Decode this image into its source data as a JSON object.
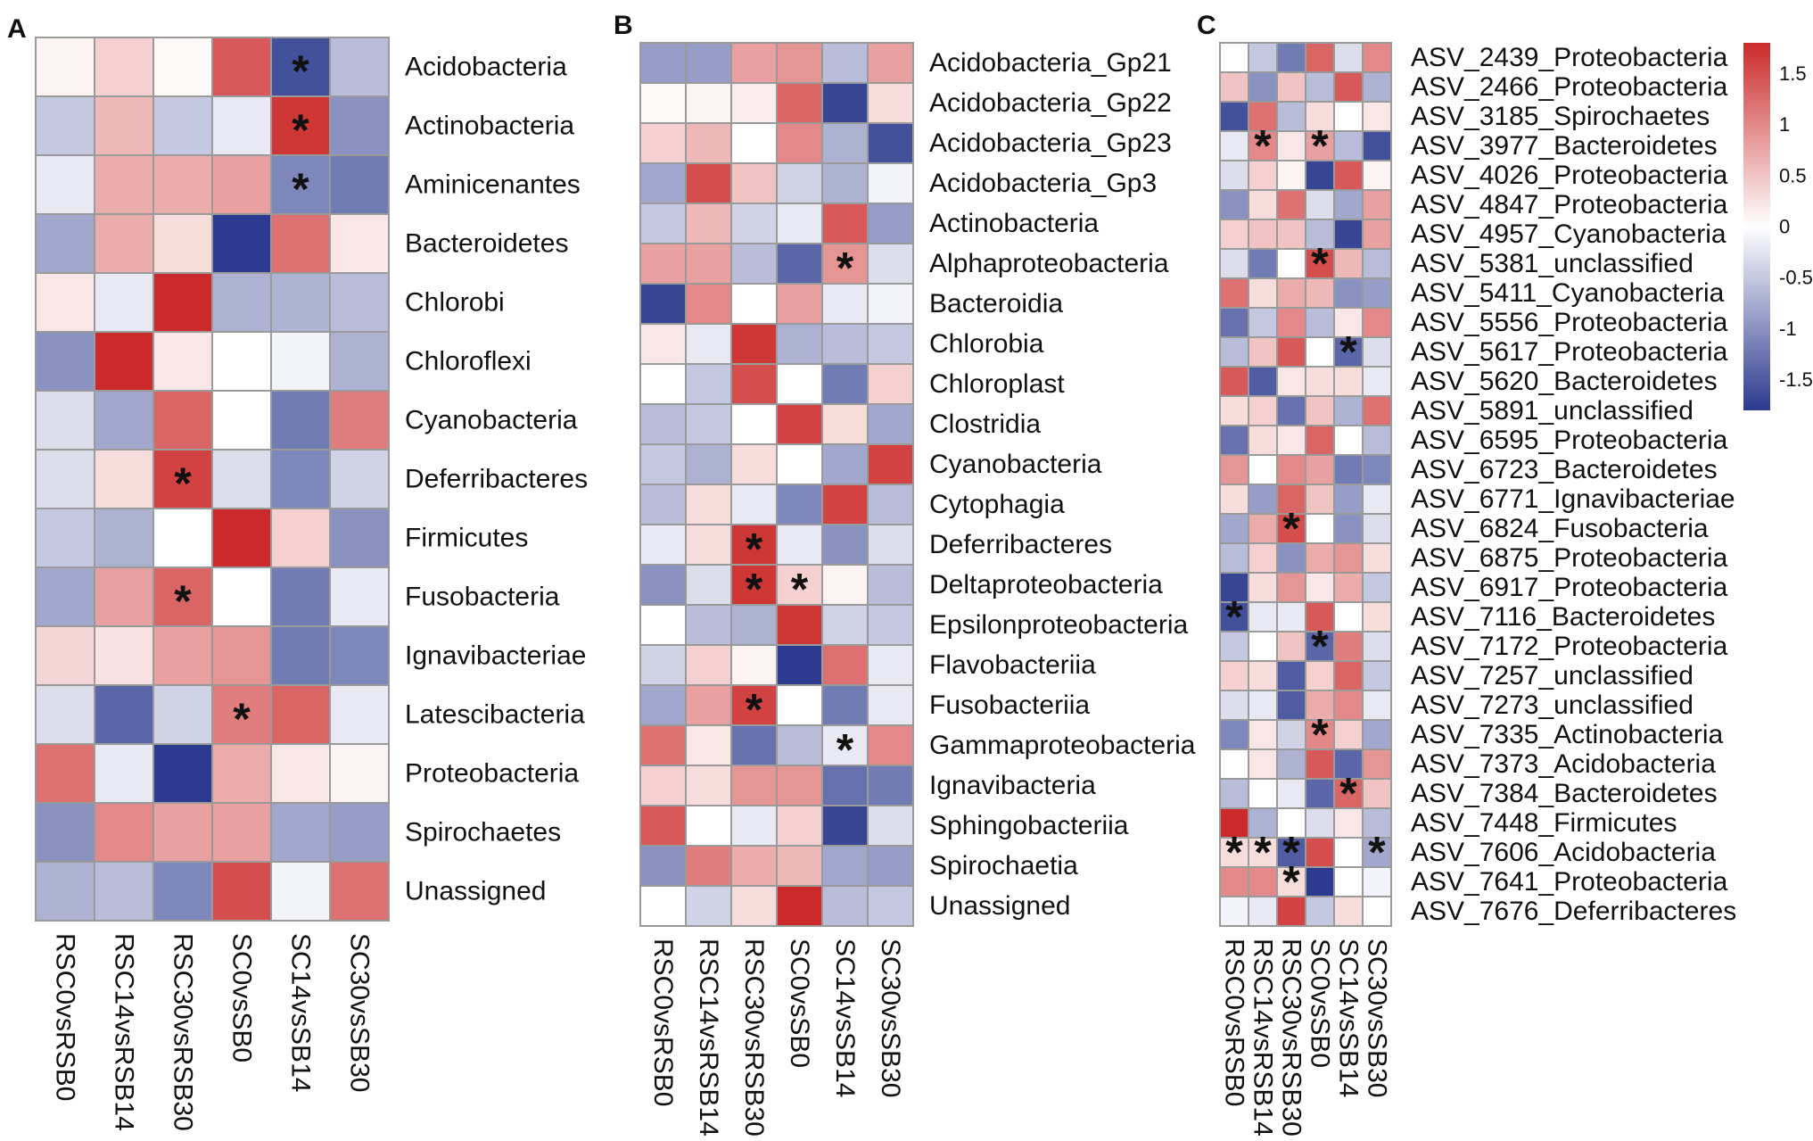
{
  "chart_data": [
    {
      "type": "heatmap",
      "panel_label": "A",
      "rows": [
        "Acidobacteria",
        "Actinobacteria",
        "Aminicenantes",
        "Bacteroidetes",
        "Chlorobi",
        "Chloroflexi",
        "Cyanobacteria",
        "Deferribacteres",
        "Firmicutes",
        "Fusobacteria",
        "Ignavibacteriae",
        "Latescibacteria",
        "Proteobacteria",
        "Spirochaetes",
        "Unassigned"
      ],
      "columns": [
        "RSC0vsRSB0",
        "RSC14vsRSB14",
        "RSC30vsRSB30",
        "SC0vsSB0",
        "SC14vsSB14",
        "SC30vsSB30"
      ],
      "values": [
        [
          0.1,
          0.4,
          0.05,
          1.4,
          -1.6,
          -0.6
        ],
        [
          -0.5,
          0.6,
          -0.5,
          -0.2,
          1.7,
          -1.0
        ],
        [
          -0.2,
          0.7,
          0.7,
          0.8,
          -1.1,
          -1.2
        ],
        [
          -0.8,
          0.7,
          0.3,
          -1.8,
          1.2,
          0.2
        ],
        [
          0.2,
          -0.2,
          1.8,
          -0.7,
          -0.7,
          -0.6
        ],
        [
          -1.0,
          1.8,
          0.2,
          0.0,
          -0.1,
          -0.7
        ],
        [
          -0.3,
          -0.8,
          1.3,
          0.0,
          -1.2,
          1.1
        ],
        [
          -0.3,
          0.3,
          1.6,
          -0.3,
          -1.1,
          -0.4
        ],
        [
          -0.5,
          -0.7,
          0.0,
          1.8,
          0.4,
          -1.0
        ],
        [
          -0.8,
          0.8,
          1.3,
          0.0,
          -1.2,
          -0.2
        ],
        [
          0.35,
          0.25,
          0.8,
          0.9,
          -1.2,
          -1.1
        ],
        [
          -0.3,
          -1.4,
          -0.4,
          1.1,
          1.3,
          -0.2
        ],
        [
          1.2,
          -0.2,
          -1.8,
          0.7,
          0.2,
          0.1
        ],
        [
          -1.0,
          1.0,
          0.8,
          0.8,
          -0.8,
          -0.9
        ],
        [
          -0.7,
          -0.6,
          -1.1,
          1.5,
          -0.1,
          1.2
        ]
      ],
      "significant": [
        [
          0,
          4
        ],
        [
          1,
          4
        ],
        [
          2,
          4
        ],
        [
          7,
          2
        ],
        [
          9,
          2
        ],
        [
          11,
          3
        ]
      ],
      "significance_marker": "*"
    },
    {
      "type": "heatmap",
      "panel_label": "B",
      "rows": [
        "Acidobacteria_Gp21",
        "Acidobacteria_Gp22",
        "Acidobacteria_Gp23",
        "Acidobacteria_Gp3",
        "Actinobacteria",
        "Alphaproteobacteria",
        "Bacteroidia",
        "Chlorobia",
        "Chloroplast",
        "Clostridia",
        "Cyanobacteria",
        "Cytophagia",
        "Deferribacteres",
        "Deltaproteobacteria",
        "Epsilonproteobacteria",
        "Flavobacteriia",
        "Fusobacteriia",
        "Gammaproteobacteria",
        "Ignavibacteria",
        "Sphingobacteriia",
        "Spirochaetia",
        "Unassigned"
      ],
      "columns": [
        "RSC0vsRSB0",
        "RSC14vsRSB14",
        "RSC30vsRSB30",
        "SC0vsSB0",
        "SC14vsSB14",
        "SC30vsSB30"
      ],
      "values": [
        [
          -0.9,
          -0.9,
          0.8,
          0.9,
          -0.6,
          0.8
        ],
        [
          0.05,
          0.1,
          0.15,
          1.3,
          -1.7,
          0.3
        ],
        [
          0.4,
          0.6,
          0.0,
          1.0,
          -0.7,
          -1.6
        ],
        [
          -0.8,
          1.5,
          0.5,
          -0.4,
          -0.7,
          -0.1
        ],
        [
          -0.5,
          0.6,
          -0.4,
          -0.2,
          1.4,
          -0.9
        ],
        [
          0.8,
          0.8,
          -0.6,
          -1.4,
          0.9,
          -0.3
        ],
        [
          -1.7,
          1.0,
          0.0,
          0.8,
          -0.2,
          -0.1
        ],
        [
          0.2,
          -0.2,
          1.7,
          -0.7,
          -0.6,
          -0.5
        ],
        [
          0.0,
          -0.5,
          1.5,
          0.0,
          -1.2,
          0.4
        ],
        [
          -0.6,
          -0.5,
          0.0,
          1.6,
          0.3,
          -0.8
        ],
        [
          -0.5,
          -0.7,
          0.3,
          0.0,
          -0.8,
          1.6
        ],
        [
          -0.6,
          0.3,
          -0.2,
          -1.1,
          1.6,
          -0.6
        ],
        [
          -0.2,
          0.3,
          1.7,
          -0.2,
          -1.0,
          -0.3
        ],
        [
          -1.0,
          -0.3,
          1.7,
          0.4,
          0.1,
          -0.6
        ],
        [
          0.0,
          -0.6,
          -0.7,
          1.7,
          -0.4,
          -0.5
        ],
        [
          -0.4,
          0.4,
          0.1,
          -1.8,
          1.2,
          -0.2
        ],
        [
          -0.8,
          0.8,
          1.6,
          0.0,
          -1.2,
          -0.2
        ],
        [
          1.2,
          0.2,
          -1.3,
          -0.6,
          -0.2,
          1.0
        ],
        [
          0.4,
          0.3,
          0.9,
          0.9,
          -1.3,
          -1.2
        ],
        [
          1.4,
          0.0,
          -0.2,
          0.4,
          -1.7,
          -0.3
        ],
        [
          -1.0,
          1.1,
          0.7,
          0.6,
          -0.8,
          -0.9
        ],
        [
          0.0,
          -0.4,
          0.3,
          1.8,
          -0.6,
          -0.5
        ]
      ],
      "significant": [
        [
          5,
          4
        ],
        [
          12,
          2
        ],
        [
          13,
          2
        ],
        [
          13,
          3
        ],
        [
          16,
          2
        ],
        [
          17,
          4
        ]
      ],
      "significance_marker": "*"
    },
    {
      "type": "heatmap",
      "panel_label": "C",
      "rows": [
        "ASV_2439_Proteobacteria",
        "ASV_2466_Proteobacteria",
        "ASV_3185_Spirochaetes",
        "ASV_3977_Bacteroidetes",
        "ASV_4026_Proteobacteria",
        "ASV_4847_Proteobacteria",
        "ASV_4957_Cyanobacteria",
        "ASV_5381_unclassified",
        "ASV_5411_Cyanobacteria",
        "ASV_5556_Proteobacteria",
        "ASV_5617_Proteobacteria",
        "ASV_5620_Bacteroidetes",
        "ASV_5891_unclassified",
        "ASV_6595_Proteobacteria",
        "ASV_6723_Bacteroidetes",
        "ASV_6771_Ignavibacteriae",
        "ASV_6824_Fusobacteria",
        "ASV_6875_Proteobacteria",
        "ASV_6917_Proteobacteria",
        "ASV_7116_Bacteroidetes",
        "ASV_7172_Proteobacteria",
        "ASV_7257_unclassified",
        "ASV_7273_unclassified",
        "ASV_7335_Actinobacteria",
        "ASV_7373_Acidobacteria",
        "ASV_7384_Bacteroidetes",
        "ASV_7448_Firmicutes",
        "ASV_7606_Acidobacteria",
        "ASV_7641_Proteobacteria",
        "ASV_7676_Deferribacteres"
      ],
      "columns": [
        "RSC0vsRSB0",
        "RSC14vsRSB14",
        "RSC30vsRSB30",
        "SC0vsSB0",
        "SC14vsSB14",
        "SC30vsSB30"
      ],
      "values": [
        [
          0.0,
          -0.5,
          -1.2,
          1.3,
          -0.3,
          1.0
        ],
        [
          0.5,
          -1.0,
          0.5,
          -0.6,
          1.4,
          -0.7
        ],
        [
          -1.6,
          1.2,
          -0.6,
          0.3,
          0.0,
          0.2
        ],
        [
          -0.2,
          1.0,
          0.2,
          0.8,
          -0.6,
          -1.6
        ],
        [
          -0.3,
          0.4,
          0.1,
          -1.7,
          1.4,
          0.1
        ],
        [
          -1.0,
          0.3,
          1.2,
          -0.3,
          -0.8,
          0.8
        ],
        [
          0.4,
          0.5,
          0.5,
          -0.6,
          -1.7,
          0.8
        ],
        [
          -0.3,
          -1.2,
          0.0,
          1.5,
          0.6,
          -0.6
        ],
        [
          1.2,
          0.3,
          0.7,
          0.6,
          -1.0,
          -0.9
        ],
        [
          -1.3,
          -0.5,
          1.0,
          -0.6,
          0.2,
          1.0
        ],
        [
          -0.6,
          0.5,
          1.4,
          0.0,
          -1.4,
          -0.3
        ],
        [
          1.4,
          -1.5,
          0.2,
          0.3,
          0.3,
          -0.2
        ],
        [
          0.3,
          0.4,
          -1.3,
          0.5,
          -0.7,
          1.2
        ],
        [
          -1.3,
          0.3,
          0.2,
          1.3,
          0.0,
          -0.6
        ],
        [
          0.9,
          0.0,
          1.0,
          0.8,
          -1.2,
          -1.1
        ],
        [
          0.3,
          -0.9,
          1.3,
          0.5,
          -0.9,
          -0.2
        ],
        [
          -0.8,
          0.7,
          1.5,
          0.0,
          -1.0,
          -0.3
        ],
        [
          -0.6,
          0.4,
          -1.0,
          0.7,
          0.9,
          0.3
        ],
        [
          -1.7,
          0.3,
          0.9,
          0.2,
          0.7,
          -0.5
        ],
        [
          -1.6,
          -0.2,
          -0.2,
          1.4,
          0.0,
          0.3
        ],
        [
          -0.5,
          0.0,
          0.5,
          -1.4,
          1.1,
          -0.3
        ],
        [
          0.4,
          0.3,
          -1.5,
          0.4,
          1.3,
          -0.5
        ],
        [
          -0.3,
          -0.2,
          -1.5,
          0.7,
          1.0,
          -0.2
        ],
        [
          -1.1,
          0.2,
          -0.4,
          1.0,
          0.4,
          -0.8
        ],
        [
          0.0,
          0.2,
          -0.7,
          1.4,
          -1.4,
          0.9
        ],
        [
          -0.6,
          0.0,
          -0.2,
          -1.4,
          1.3,
          0.5
        ],
        [
          1.8,
          -0.7,
          0.0,
          -0.3,
          0.2,
          -0.6
        ],
        [
          0.3,
          0.3,
          -1.5,
          1.5,
          0.0,
          -0.8
        ],
        [
          1.0,
          1.0,
          0.3,
          -1.8,
          0.0,
          -0.1
        ],
        [
          -0.1,
          -0.2,
          1.6,
          -0.5,
          0.3,
          0.0
        ]
      ],
      "significant": [
        [
          3,
          1
        ],
        [
          3,
          3
        ],
        [
          7,
          3
        ],
        [
          10,
          4
        ],
        [
          16,
          2
        ],
        [
          19,
          0
        ],
        [
          20,
          3
        ],
        [
          23,
          3
        ],
        [
          25,
          4
        ],
        [
          27,
          0
        ],
        [
          27,
          1
        ],
        [
          27,
          2
        ],
        [
          27,
          5
        ],
        [
          28,
          2
        ]
      ],
      "significance_marker": "*"
    }
  ],
  "color_scale": {
    "min": -1.8,
    "max": 1.8,
    "low_color": "#2c3a8f",
    "mid_color": "#ffffff",
    "high_color": "#cc2a2a",
    "ticks": [
      "1.5",
      "1",
      "0.5",
      "0",
      "-0.5",
      "-1",
      "-1.5"
    ],
    "tick_values": [
      1.5,
      1,
      0.5,
      0,
      -0.5,
      -1,
      -1.5
    ]
  },
  "grid_color": "#9a9a9a"
}
